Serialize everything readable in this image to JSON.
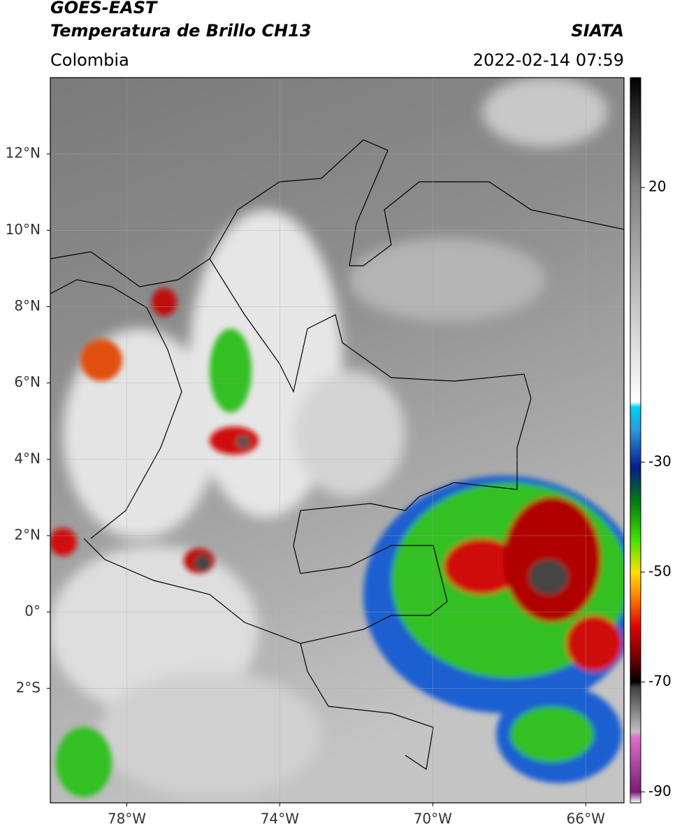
{
  "chart_data": {
    "type": "map",
    "title": "GOES-EAST",
    "subtitle": "Temperatura de Brillo CH13",
    "source": "SIATA",
    "region": "Colombia",
    "datetime": "2022-02-14 07:59",
    "xlim": [
      -80,
      -65
    ],
    "ylim": [
      -5,
      14
    ],
    "xticks": [
      {
        "value": -78,
        "label": "78°W"
      },
      {
        "value": -74,
        "label": "74°W"
      },
      {
        "value": -70,
        "label": "70°W"
      },
      {
        "value": -66,
        "label": "66°W"
      }
    ],
    "yticks": [
      {
        "value": 12,
        "label": "12°N"
      },
      {
        "value": 10,
        "label": "10°N"
      },
      {
        "value": 8,
        "label": "8°N"
      },
      {
        "value": 6,
        "label": "6°N"
      },
      {
        "value": 4,
        "label": "4°N"
      },
      {
        "value": 2,
        "label": "2°N"
      },
      {
        "value": 0,
        "label": "0°"
      },
      {
        "value": -2,
        "label": "2°S"
      }
    ],
    "grid": true,
    "colorbar": {
      "clim": [
        -92,
        40
      ],
      "ticks": [
        20,
        -30,
        -50,
        -70,
        -90
      ],
      "stops": [
        {
          "value": -92,
          "color": "#ffffff"
        },
        {
          "value": -90,
          "color": "#7a1a7a"
        },
        {
          "value": -80,
          "color": "#e070c8"
        },
        {
          "value": -79,
          "color": "#c0c0c0"
        },
        {
          "value": -71,
          "color": "#404040"
        },
        {
          "value": -70,
          "color": "#000000"
        },
        {
          "value": -66,
          "color": "#6a0000"
        },
        {
          "value": -60,
          "color": "#e00000"
        },
        {
          "value": -54,
          "color": "#ff8c00"
        },
        {
          "value": -50,
          "color": "#ffe000"
        },
        {
          "value": -44,
          "color": "#40e000"
        },
        {
          "value": -37,
          "color": "#007a10"
        },
        {
          "value": -31,
          "color": "#0a1a8a"
        },
        {
          "value": -24,
          "color": "#2a9ae0"
        },
        {
          "value": -20,
          "color": "#00d0f0"
        },
        {
          "value": -19,
          "color": "#ffffff"
        },
        {
          "value": 20,
          "color": "#808080"
        },
        {
          "value": 40,
          "color": "#000000"
        }
      ]
    }
  }
}
